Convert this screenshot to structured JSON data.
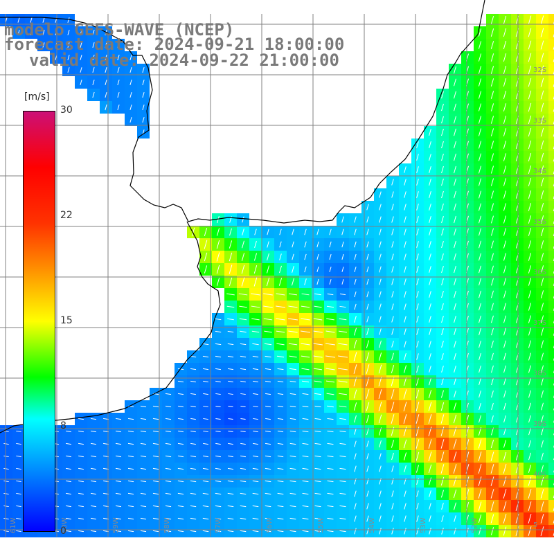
{
  "title": {
    "line1": "modelo GEFS-WAVE (NCEP)",
    "line2": "forecast date: 2024-09-21 18:00:00",
    "line3": "valid date: 2024-09-22 21:00:00"
  },
  "colorbar": {
    "unit": "[m/s]",
    "ticks": [
      "30",
      "22",
      "15",
      "8",
      "0"
    ],
    "range": [
      0,
      30
    ],
    "stops": [
      {
        "v": 0,
        "c": "#0000ff"
      },
      {
        "v": 8,
        "c": "#00ffff"
      },
      {
        "v": 11,
        "c": "#00ff00"
      },
      {
        "v": 15,
        "c": "#ffff00"
      },
      {
        "v": 19,
        "c": "#ff8800"
      },
      {
        "v": 22,
        "c": "#ff3300"
      },
      {
        "v": 26,
        "c": "#ff0000"
      },
      {
        "v": 30,
        "c": "#cc1077"
      }
    ]
  },
  "map": {
    "lat_labels": [
      "32S",
      "33S",
      "34S",
      "35S",
      "36S",
      "37S",
      "38S",
      "39S",
      "40S",
      "5"
    ],
    "lon_labels": [
      "61W",
      "60W",
      "59W",
      "58W",
      "57W",
      "56W",
      "55W",
      "54W",
      "53W",
      "52W"
    ],
    "land_color": "#ffffff",
    "grid_color": "#808080",
    "arrow_color": "#ffffff",
    "coastline_color": "#000000"
  }
}
